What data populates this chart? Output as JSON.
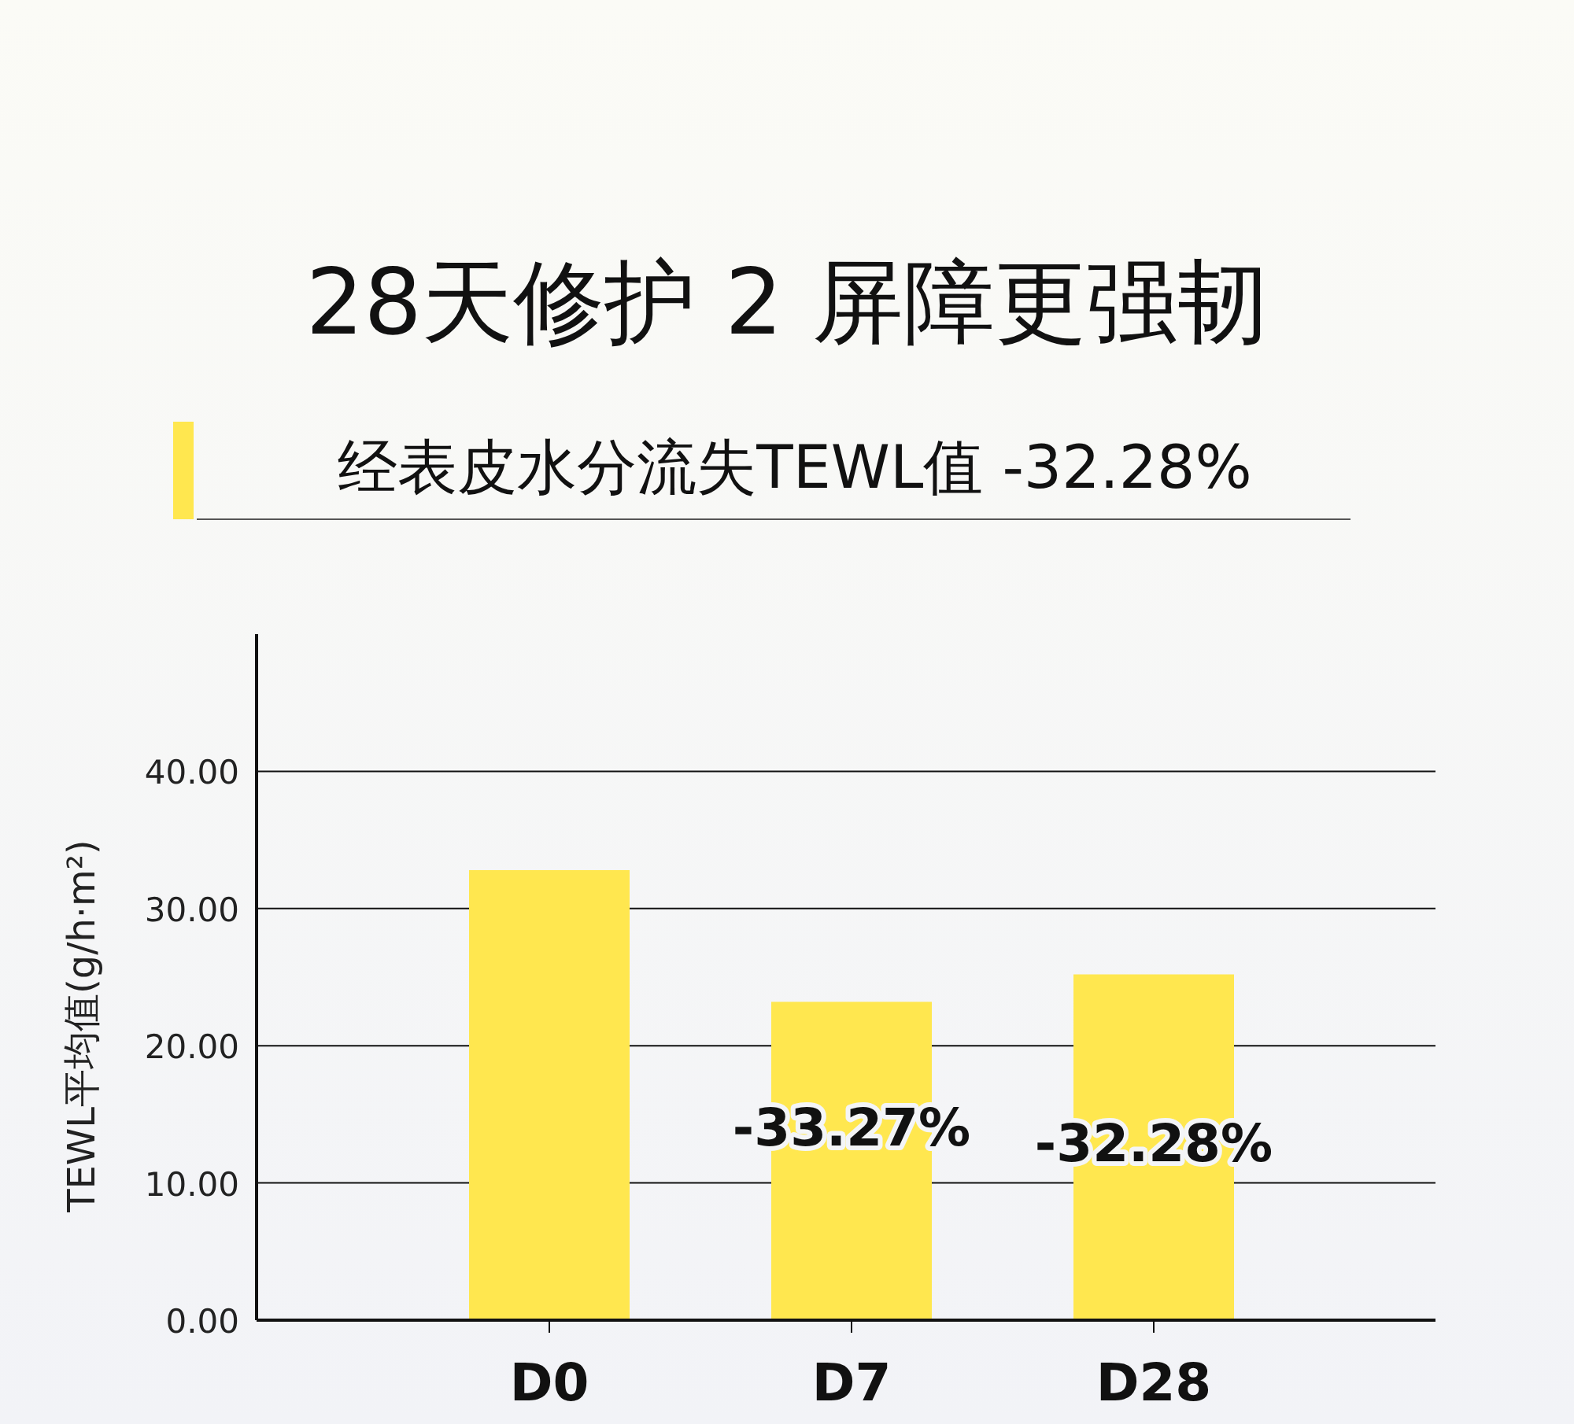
{
  "chart_data": {
    "type": "bar",
    "title": "28天修护 2 屏障更强韧",
    "subtitle": "经表皮水分流失TEWL值 -32.28%",
    "ylabel": "TEWL平均值(g/h·m²)",
    "categories": [
      "D0",
      "D7",
      "D28"
    ],
    "values": [
      32.8,
      23.2,
      25.2
    ],
    "color": "#ffe74f",
    "ylim": [
      0,
      50
    ],
    "yticks": [
      {
        "value": 0,
        "label": "0.00"
      },
      {
        "value": 10,
        "label": "10.00"
      },
      {
        "value": 20,
        "label": "20.00"
      },
      {
        "value": 30,
        "label": "30.00"
      },
      {
        "value": 40,
        "label": "40.00"
      }
    ],
    "grid": "y",
    "annotations": [
      "-33.27%",
      "-32.28%"
    ]
  }
}
